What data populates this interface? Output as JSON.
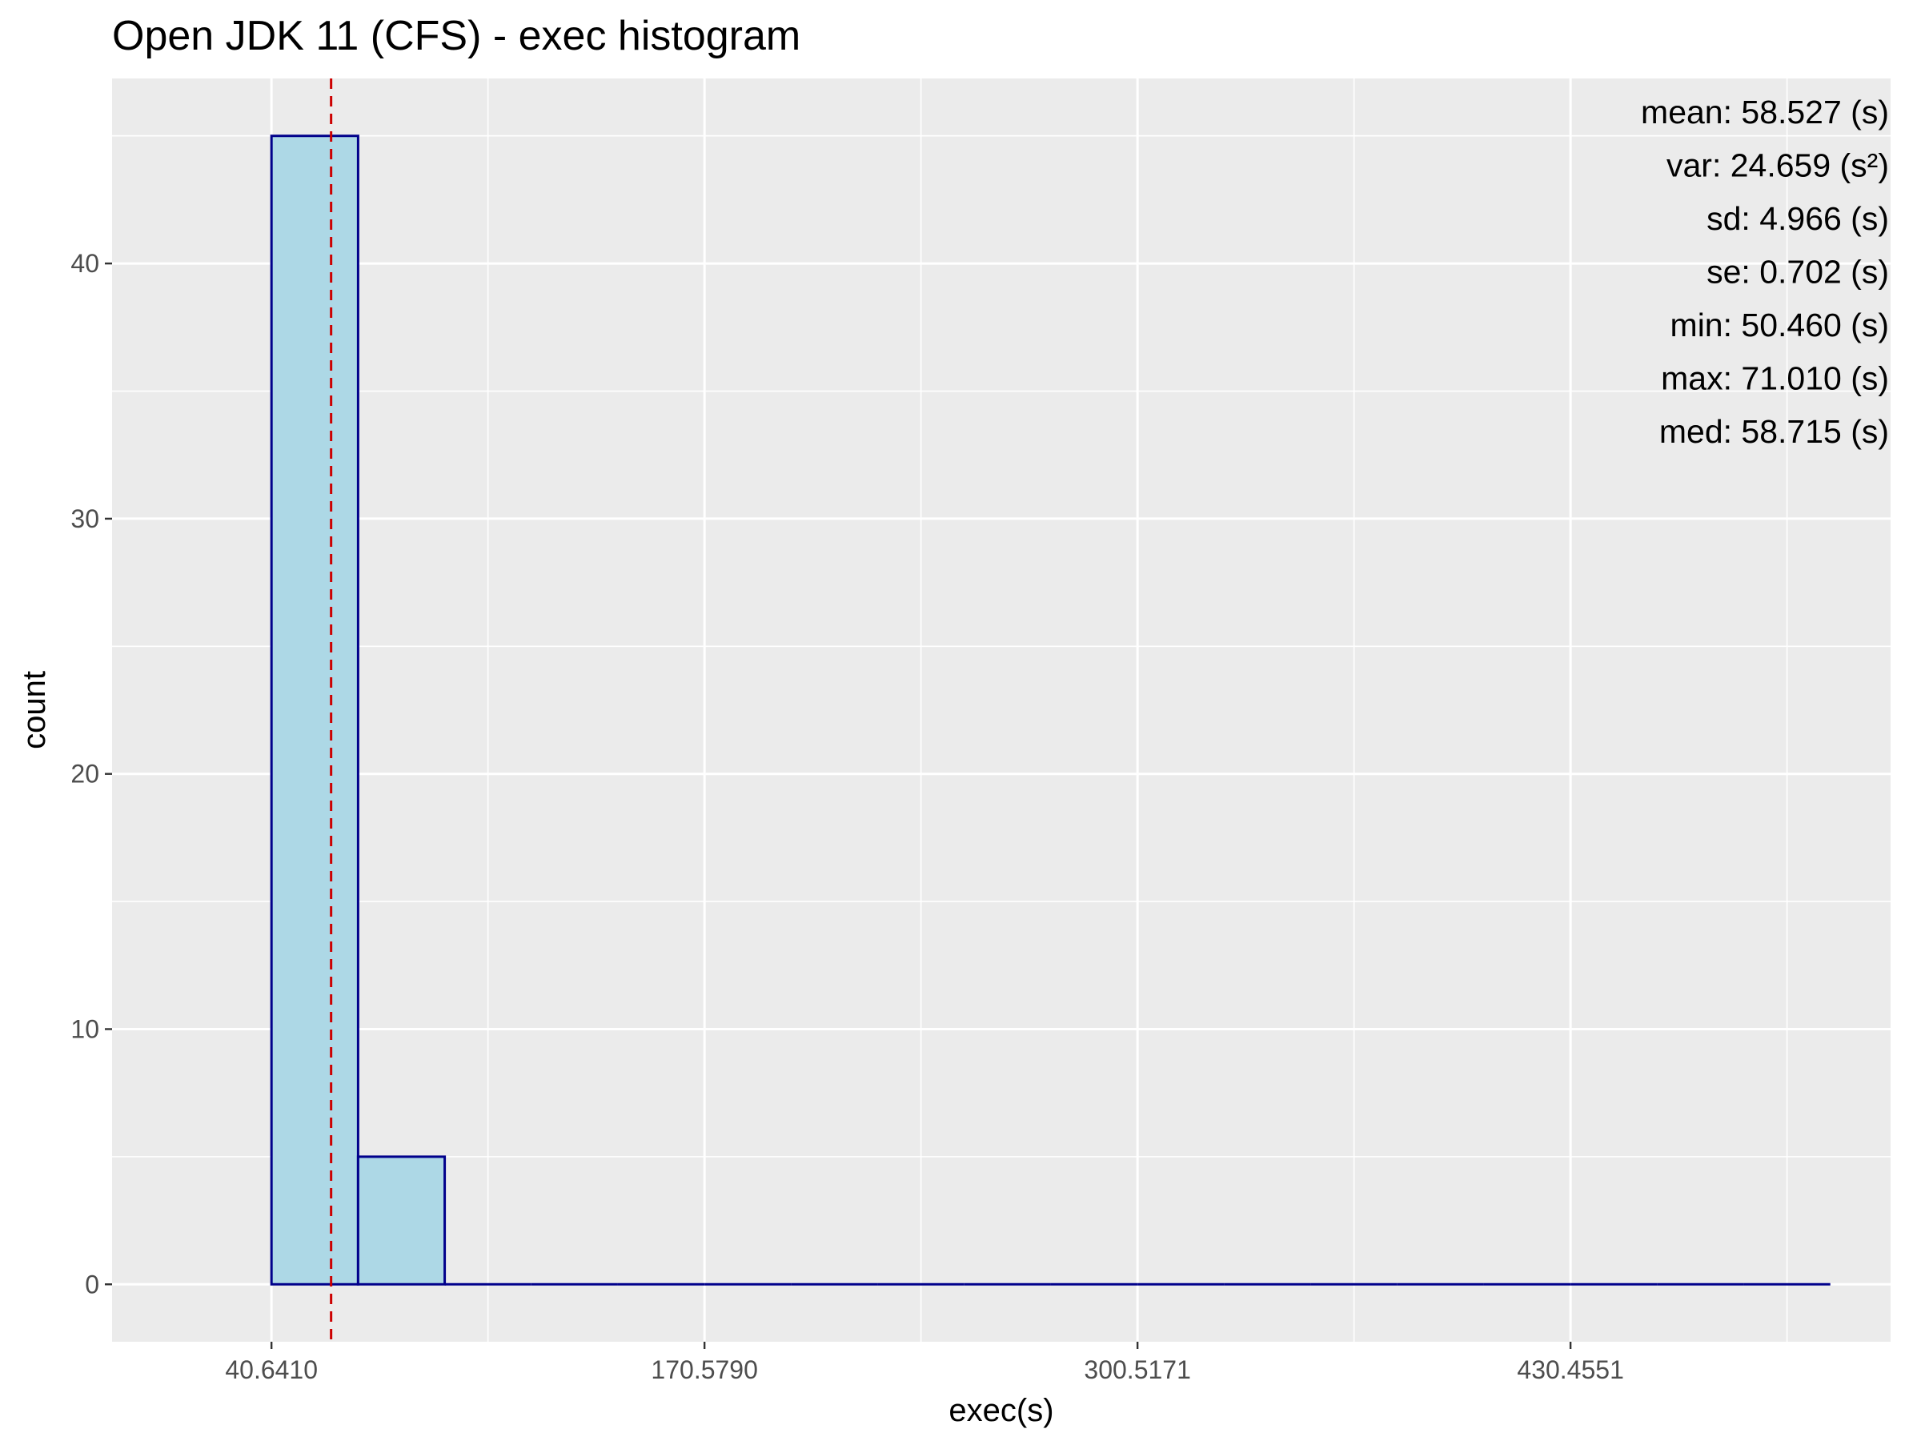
{
  "chart_data": {
    "type": "bar",
    "title": "Open JDK 11 (CFS) - exec histogram",
    "xlabel": "exec(s)",
    "ylabel": "count",
    "xlim": [
      -7.2,
      526.5
    ],
    "ylim": [
      -2.25,
      47.25
    ],
    "x_ticks": [
      40.641,
      170.579,
      300.5171,
      430.4551
    ],
    "x_tick_labels": [
      "40.6410",
      "170.5790",
      "300.5171",
      "430.4551"
    ],
    "y_ticks": [
      0,
      10,
      20,
      30,
      40
    ],
    "y_tick_labels": [
      "0",
      "10",
      "20",
      "30",
      "40"
    ],
    "bin_width": 25.99,
    "bins": [
      {
        "start": 40.641,
        "end": 66.63,
        "count": 45
      },
      {
        "start": 66.63,
        "end": 92.62,
        "count": 5
      },
      {
        "start": 92.62,
        "end": 118.6,
        "count": 0
      },
      {
        "start": 118.6,
        "end": 144.59,
        "count": 0
      },
      {
        "start": 144.59,
        "end": 170.58,
        "count": 0
      },
      {
        "start": 170.58,
        "end": 196.57,
        "count": 0
      },
      {
        "start": 196.57,
        "end": 222.56,
        "count": 0
      },
      {
        "start": 222.56,
        "end": 248.54,
        "count": 0
      },
      {
        "start": 248.54,
        "end": 274.53,
        "count": 0
      },
      {
        "start": 274.53,
        "end": 300.52,
        "count": 0
      },
      {
        "start": 300.52,
        "end": 326.51,
        "count": 0
      },
      {
        "start": 326.51,
        "end": 352.5,
        "count": 0
      },
      {
        "start": 352.5,
        "end": 378.48,
        "count": 0
      },
      {
        "start": 378.48,
        "end": 404.47,
        "count": 0
      },
      {
        "start": 404.47,
        "end": 430.46,
        "count": 0
      },
      {
        "start": 430.46,
        "end": 456.45,
        "count": 0
      },
      {
        "start": 456.45,
        "end": 482.44,
        "count": 0
      },
      {
        "start": 482.44,
        "end": 508.42,
        "count": 0
      }
    ],
    "mean_line_x": 58.527,
    "grid": true,
    "colors": {
      "panel_bg": "#ebebeb",
      "grid_major": "#ffffff",
      "bar_fill": "#add8e6",
      "bar_stroke": "#00008b",
      "mean_line": "#cd0000"
    },
    "stats_placement": "top-right",
    "stats": [
      "mean: 58.527 (s)",
      "var: 24.659 (s²)",
      "sd: 4.966 (s)",
      "se: 0.702 (s)",
      "min: 50.460 (s)",
      "max: 71.010 (s)",
      "med: 58.715 (s)"
    ]
  }
}
